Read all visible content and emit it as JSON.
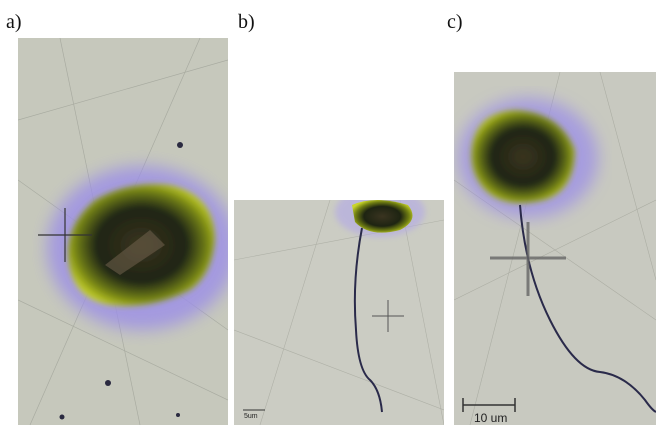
{
  "panels": [
    {
      "label": "a)"
    },
    {
      "label": "b)",
      "scale_bar": "5um"
    },
    {
      "label": "c)",
      "scale_bar": "10 um"
    }
  ]
}
